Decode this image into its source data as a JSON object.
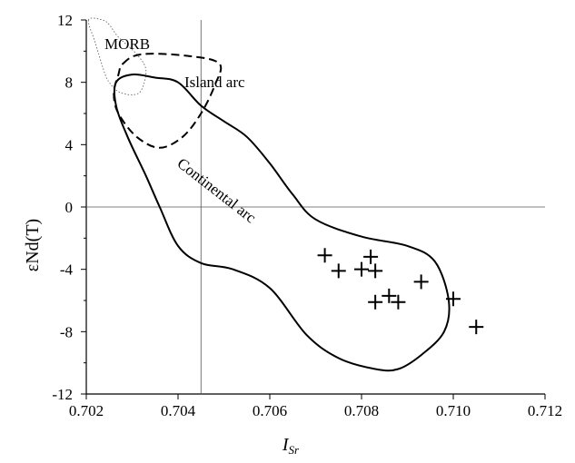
{
  "chart_data": {
    "type": "scatter",
    "xlabel_main": "I",
    "xlabel_sub": "Sr",
    "ylabel": "εNd(T)",
    "xlim": [
      0.702,
      0.712
    ],
    "ylim": [
      -12,
      12
    ],
    "x_ticks": [
      "0.702",
      "0.704",
      "0.706",
      "0.708",
      "0.710",
      "0.712"
    ],
    "y_ticks": [
      "-12",
      "-8",
      "-4",
      "0",
      "4",
      "8",
      "12"
    ],
    "reference_lines": {
      "x": 0.7045,
      "y": 0
    },
    "series": [
      {
        "marker": "plus",
        "points": [
          [
            0.7072,
            -3.1
          ],
          [
            0.7075,
            -4.1
          ],
          [
            0.708,
            -4.0
          ],
          [
            0.7082,
            -3.2
          ],
          [
            0.7083,
            -4.1
          ],
          [
            0.7083,
            -6.1
          ],
          [
            0.7086,
            -5.7
          ],
          [
            0.7088,
            -6.1
          ],
          [
            0.7093,
            -4.8
          ],
          [
            0.71,
            -5.9
          ],
          [
            0.7105,
            -7.7
          ]
        ]
      }
    ],
    "regions": [
      {
        "label": "MORB",
        "style": "dotted",
        "polygon": [
          [
            0.70205,
            12
          ],
          [
            0.7022,
            10.5
          ],
          [
            0.7024,
            8.6
          ],
          [
            0.7025,
            8.0
          ],
          [
            0.7027,
            7.4
          ],
          [
            0.703,
            7.2
          ],
          [
            0.7032,
            7.5
          ],
          [
            0.7033,
            8.8
          ],
          [
            0.7031,
            9.8
          ],
          [
            0.7027,
            10.9
          ],
          [
            0.7025,
            11.7
          ],
          [
            0.70235,
            12
          ]
        ]
      },
      {
        "label": "Island arc",
        "style": "dashed",
        "polygon": [
          [
            0.7028,
            9.2
          ],
          [
            0.7032,
            9.8
          ],
          [
            0.7042,
            9.7
          ],
          [
            0.7049,
            9.2
          ],
          [
            0.7048,
            7.8
          ],
          [
            0.7045,
            6.0
          ],
          [
            0.7041,
            4.5
          ],
          [
            0.7036,
            3.8
          ],
          [
            0.7031,
            4.5
          ],
          [
            0.7027,
            6.0
          ],
          [
            0.7026,
            7.3
          ],
          [
            0.7027,
            8.5
          ]
        ]
      },
      {
        "label": "Continental arc",
        "style": "solid",
        "polygon": [
          [
            0.70265,
            8.0
          ],
          [
            0.703,
            8.5
          ],
          [
            0.7035,
            8.3
          ],
          [
            0.704,
            8.0
          ],
          [
            0.7045,
            6.5
          ],
          [
            0.705,
            5.5
          ],
          [
            0.7055,
            4.5
          ],
          [
            0.706,
            2.8
          ],
          [
            0.7065,
            0.8
          ],
          [
            0.707,
            -0.8
          ],
          [
            0.708,
            -1.9
          ],
          [
            0.709,
            -2.5
          ],
          [
            0.7096,
            -3.5
          ],
          [
            0.7099,
            -6.0
          ],
          [
            0.7098,
            -8.0
          ],
          [
            0.7093,
            -9.5
          ],
          [
            0.7088,
            -10.4
          ],
          [
            0.7083,
            -10.4
          ],
          [
            0.7075,
            -9.7
          ],
          [
            0.7068,
            -8.2
          ],
          [
            0.706,
            -5.2
          ],
          [
            0.7052,
            -4.0
          ],
          [
            0.7045,
            -3.6
          ],
          [
            0.704,
            -2.5
          ],
          [
            0.7036,
            0.0
          ],
          [
            0.7033,
            2.0
          ],
          [
            0.7029,
            4.5
          ],
          [
            0.70265,
            6.5
          ]
        ]
      }
    ],
    "region_labels": {
      "morb": "MORB",
      "island_arc": "Island arc",
      "continental_arc": "Continental arc"
    }
  }
}
